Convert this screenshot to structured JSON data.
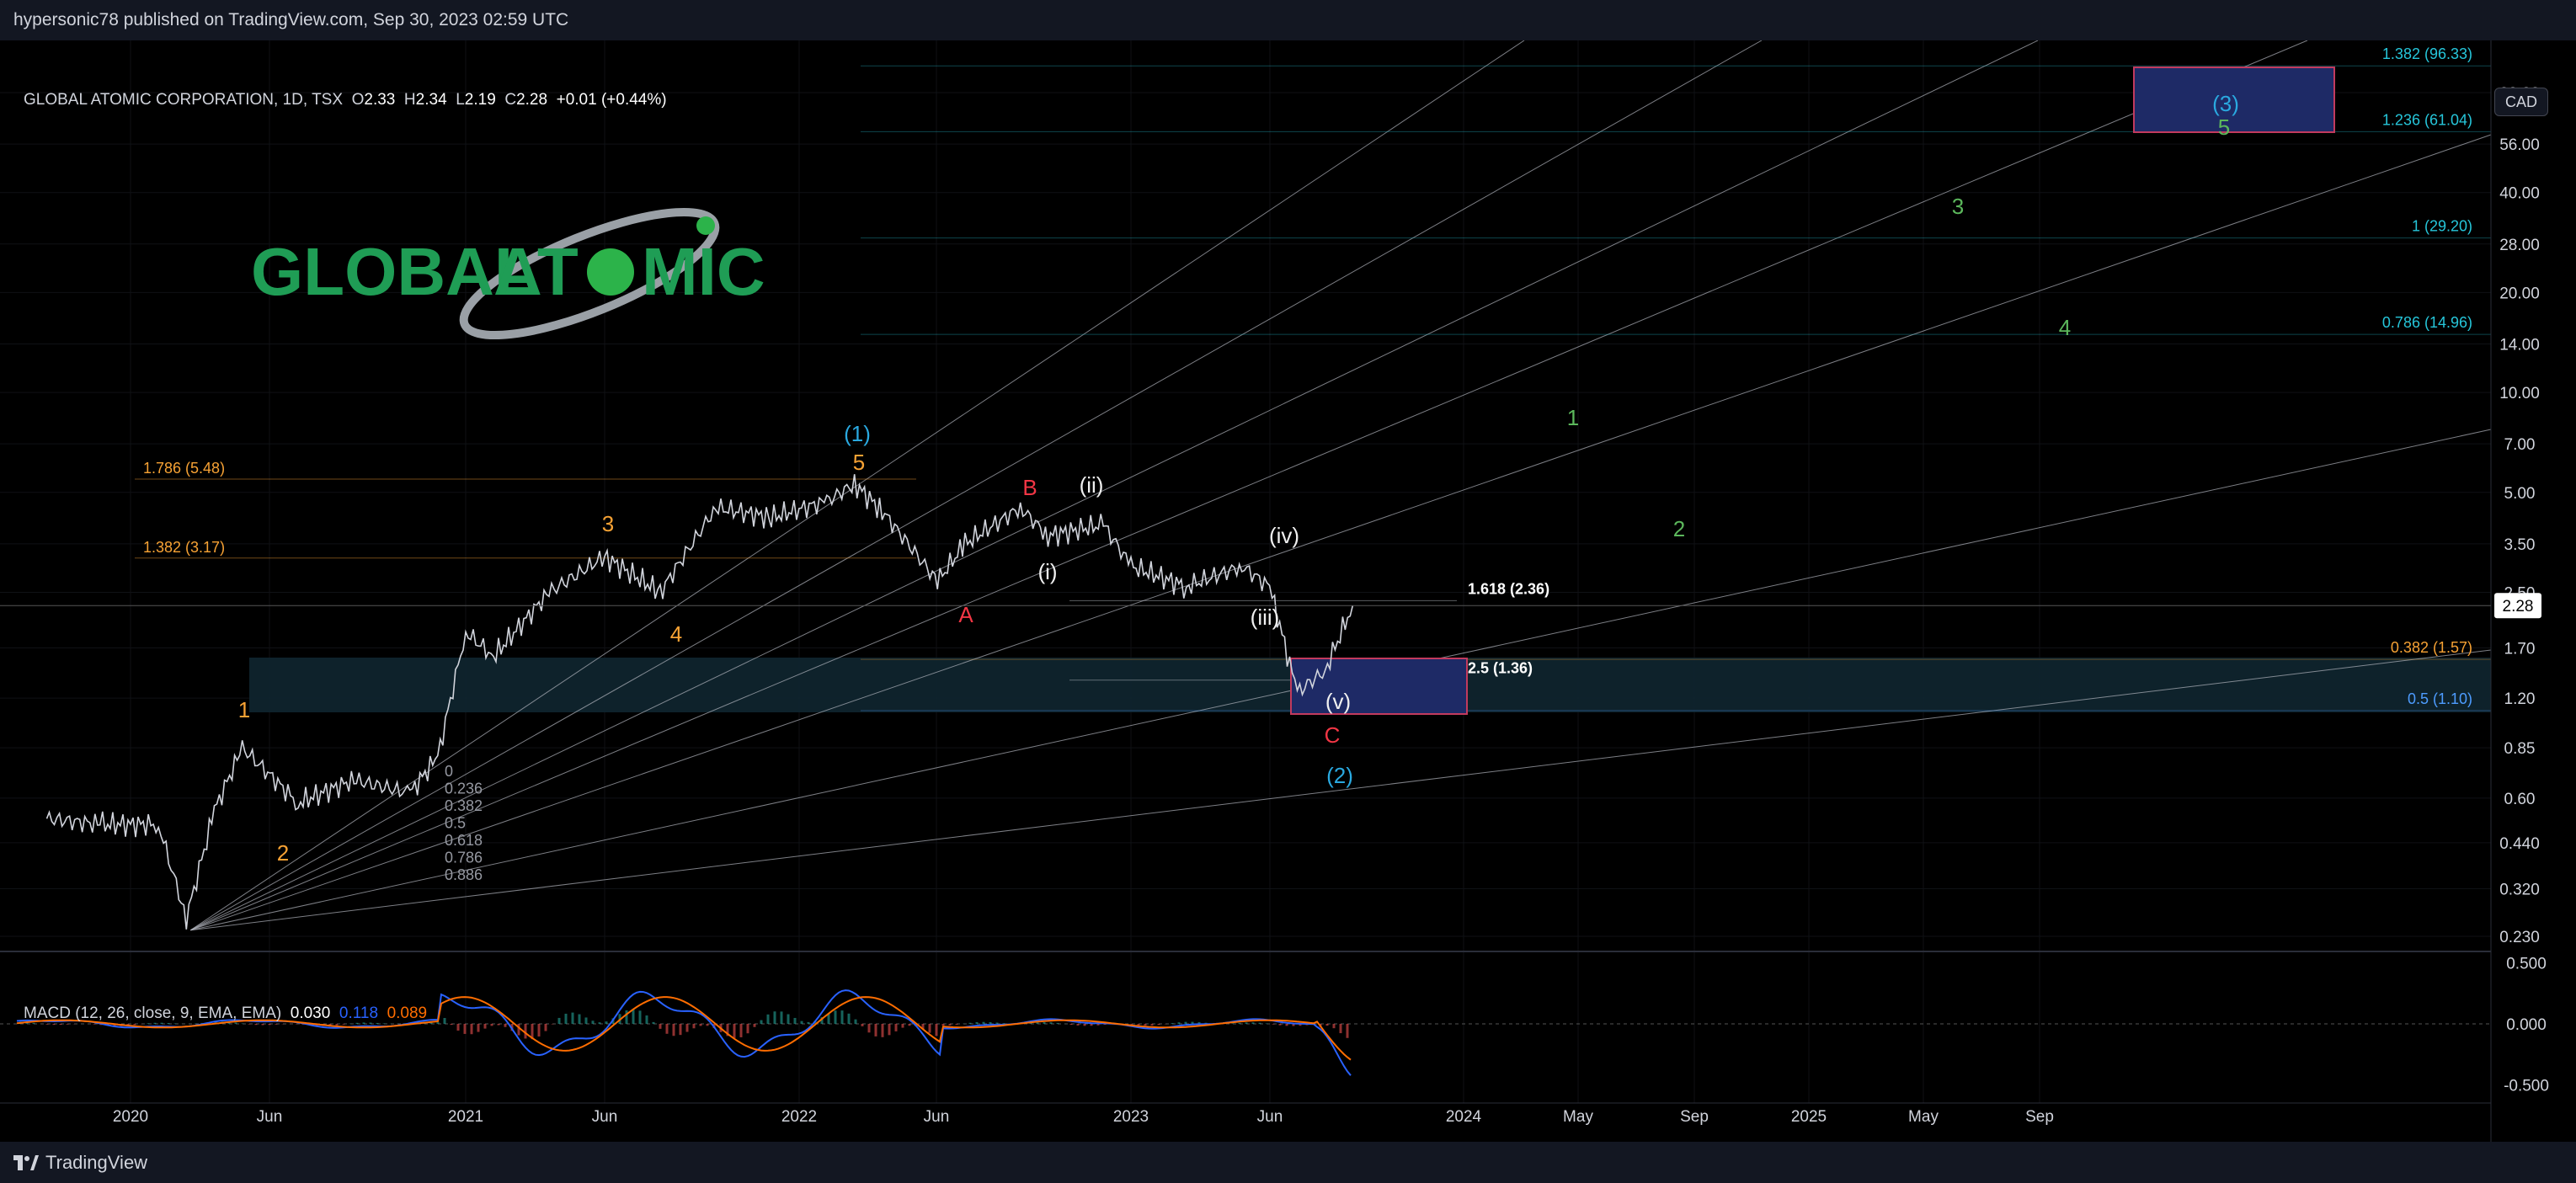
{
  "header": {
    "published": "hypersonic78 published on TradingView.com, Sep 30, 2023 02:59 UTC"
  },
  "legend": {
    "symbol": "GLOBAL ATOMIC CORPORATION, 1D, TSX",
    "o_label": "O",
    "o": "2.33",
    "h_label": "H",
    "h": "2.34",
    "l_label": "L",
    "l": "2.19",
    "c_label": "C",
    "c": "2.28",
    "change": "+0.01 (+0.44%)"
  },
  "currency": "CAD",
  "logo": {
    "text1": "GLOBAL",
    "text2": "AT",
    "text3": "MIC"
  },
  "footer": {
    "brand": "TradingView"
  },
  "colors": {
    "orange": "#f7a234",
    "red": "#f23645",
    "cyan": "#2aa9e0",
    "green": "#5cb85c",
    "fib_cyan": "#26c6da",
    "zone": "#1e2a66",
    "zone_border": "#c23a5e"
  },
  "chart_data": {
    "type": "line",
    "title": "GLOBAL ATOMIC CORPORATION, 1D, TSX",
    "scale": "log",
    "y_ticks": [
      "80.00",
      "56.00",
      "40.00",
      "28.00",
      "20.00",
      "14.00",
      "10.00",
      "7.00",
      "5.00",
      "3.50",
      "2.50",
      "1.70",
      "1.20",
      "0.85",
      "0.60",
      "0.440",
      "0.320",
      "0.230"
    ],
    "x_ticks": [
      "2020",
      "Jun",
      "2021",
      "Jun",
      "2022",
      "Jun",
      "2023",
      "Jun",
      "2024",
      "May",
      "Sep",
      "2025",
      "May",
      "Sep"
    ],
    "last_price": "2.28",
    "series": [
      {
        "x": [
          "2019-10",
          "2019-12",
          "2020-02",
          "2020-03",
          "2020-04",
          "2020-05",
          "2020-07",
          "2020-09",
          "2020-11",
          "2020-12",
          "2021-01",
          "2021-02",
          "2021-04",
          "2021-06",
          "2021-08",
          "2021-10",
          "2021-12",
          "2022-02",
          "2022-03",
          "2022-04",
          "2022-06",
          "2022-07",
          "2022-09",
          "2022-10",
          "2022-12",
          "2023-01",
          "2023-03",
          "2023-05",
          "2023-06",
          "2023-07",
          "2023-08",
          "2023-09"
        ],
        "values": [
          0.52,
          0.5,
          0.5,
          0.26,
          0.55,
          0.85,
          0.58,
          0.68,
          0.62,
          0.8,
          1.9,
          1.6,
          2.5,
          3.2,
          2.5,
          4.5,
          4.2,
          4.7,
          5.3,
          4.4,
          2.7,
          3.5,
          4.5,
          3.7,
          4.0,
          3.0,
          2.6,
          3.0,
          2.6,
          1.25,
          1.45,
          2.28
        ]
      }
    ],
    "fib_levels_right": [
      {
        "label": "1.382 (96.33)",
        "value": 96.33
      },
      {
        "label": "1.236 (61.04)",
        "value": 61.04
      },
      {
        "label": "1 (29.20)",
        "value": 29.2
      },
      {
        "label": "0.786 (14.96)",
        "value": 14.96
      },
      {
        "label": "0.382 (1.57)",
        "value": 1.57
      },
      {
        "label": "0.5 (1.10)",
        "value": 1.1
      }
    ],
    "fib_levels_left": [
      {
        "label": "1.786 (5.48)",
        "value": 5.48
      },
      {
        "label": "1.382 (3.17)",
        "value": 3.17
      }
    ],
    "fib_levels_mid": [
      {
        "label": "1.618 (2.36)",
        "value": 2.36
      },
      {
        "label": "2.5 (1.36)",
        "value": 1.36
      }
    ],
    "fan_labels": [
      "0",
      "0.236",
      "0.382",
      "0.5",
      "0.618",
      "0.786",
      "0.886"
    ],
    "wave_labels": {
      "orange": [
        "1",
        "2",
        "3",
        "4",
        "5"
      ],
      "red": [
        "A",
        "B",
        "C"
      ],
      "cyan": [
        "(1)",
        "(2)",
        "(3)"
      ],
      "white": [
        "(i)",
        "(ii)",
        "(iii)",
        "(iv)",
        "(v)"
      ],
      "green": [
        "1",
        "2",
        "3",
        "4",
        "5"
      ]
    },
    "macd": {
      "legend": "MACD (12, 26, close, 9, EMA, EMA)",
      "value": "0.030",
      "signal": "0.118",
      "hist": "0.089",
      "y_ticks": [
        "0.500",
        "0.000",
        "-0.500"
      ]
    }
  }
}
